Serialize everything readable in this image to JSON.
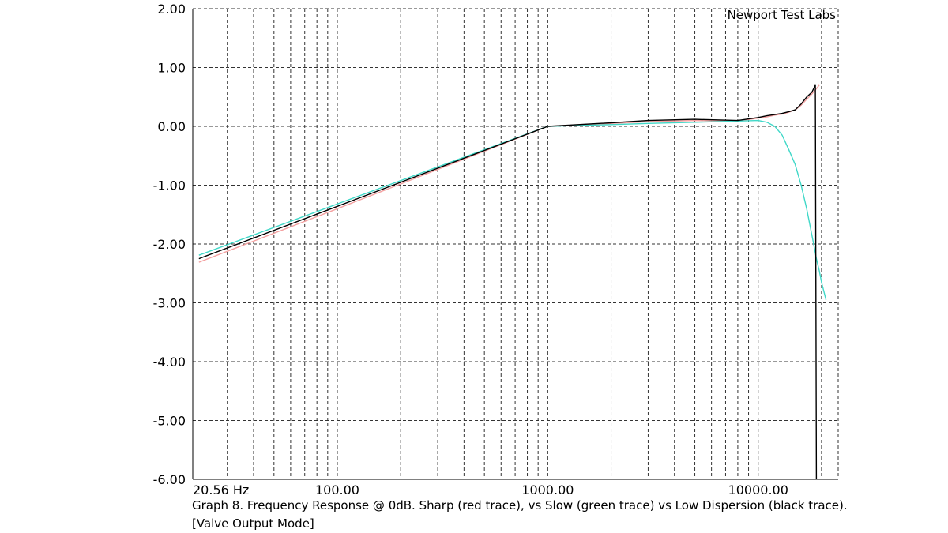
{
  "chart_data": {
    "type": "line",
    "annotation": "Newport Test Labs",
    "caption": [
      "Graph 8. Frequency Response @ 0dB. Sharp (red trace), vs Slow (green trace) vs Low Dispersion (black trace).",
      "[Valve Output Mode]"
    ],
    "log_x": true,
    "grid": true,
    "xlim": [
      20.56,
      24000
    ],
    "ylim": [
      -6,
      2
    ],
    "xticks": [
      {
        "value": 20.56,
        "label": "20.56 Hz"
      },
      {
        "value": 100,
        "label": "100.00"
      },
      {
        "value": 1000,
        "label": "1000.00"
      },
      {
        "value": 10000,
        "label": "10000.00"
      }
    ],
    "xminor": [
      30,
      40,
      50,
      60,
      70,
      80,
      90,
      200,
      300,
      400,
      500,
      600,
      700,
      800,
      900,
      2000,
      3000,
      4000,
      5000,
      6000,
      7000,
      8000,
      9000,
      20000
    ],
    "yticks": [
      {
        "value": 2,
        "label": "2.00"
      },
      {
        "value": 1,
        "label": "1.00"
      },
      {
        "value": 0,
        "label": "0.00"
      },
      {
        "value": -1,
        "label": "-1.00"
      },
      {
        "value": -2,
        "label": "-2.00"
      },
      {
        "value": -3,
        "label": "-3.00"
      },
      {
        "value": -4,
        "label": "-4.00"
      },
      {
        "value": -5,
        "label": "-5.00"
      },
      {
        "value": -6,
        "label": "-6.00"
      }
    ],
    "x": [
      22,
      100,
      1000,
      2000,
      3000,
      5000,
      8000,
      10000,
      11000,
      12000,
      13000,
      14000,
      15000,
      16000,
      17000,
      18000,
      18700,
      18900,
      19500,
      20000,
      21000
    ],
    "series": [
      {
        "color": "#f4a0a0",
        "values": [
          -2.31,
          -1.4,
          0,
          0.05,
          0.08,
          0.1,
          0.09,
          0.14,
          0.16,
          0.19,
          0.21,
          0.24,
          0.28,
          0.36,
          0.46,
          0.55,
          0.62,
          0.64,
          0.7,
          null,
          null
        ]
      },
      {
        "color": "#40d8c8",
        "values": [
          -2.19,
          -1.32,
          0,
          0.03,
          0.05,
          0.07,
          0.09,
          0.1,
          0.07,
          0.0,
          -0.15,
          -0.4,
          -0.65,
          -1.0,
          -1.4,
          -1.85,
          -2.15,
          -2.25,
          -2.45,
          -2.65,
          -2.95
        ]
      },
      {
        "color": "#000000",
        "values": [
          -2.25,
          -1.36,
          0,
          0.06,
          0.1,
          0.12,
          0.1,
          0.15,
          0.18,
          0.2,
          0.22,
          0.25,
          0.28,
          0.38,
          0.5,
          0.58,
          0.7,
          -6.0,
          null,
          null,
          null
        ]
      }
    ]
  }
}
